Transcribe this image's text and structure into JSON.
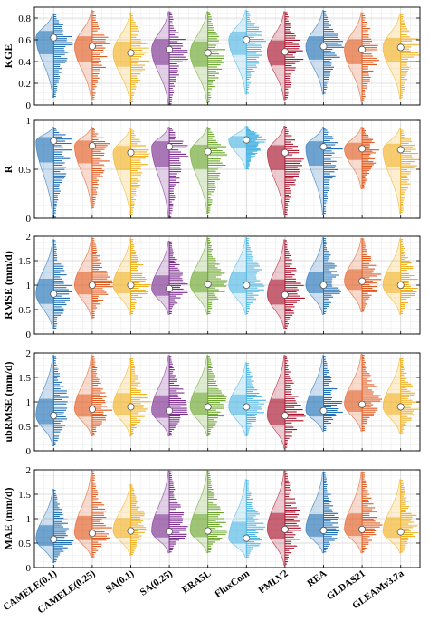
{
  "chart_data": {
    "type": "violin",
    "categories": [
      "CAMELE(0.1)",
      "CAMELE(0.25)",
      "SA(0.1)",
      "SA(0.25)",
      "ERA5L",
      "FluxCom",
      "PMLV2",
      "REA",
      "GLDAS21",
      "GLEAMv3.7a"
    ],
    "colors": [
      "#1f6fb5",
      "#e05a1f",
      "#f0b020",
      "#7b2d8e",
      "#6aa52a",
      "#4fb6e3",
      "#a8102a",
      "#1f6fb5",
      "#e05a1f",
      "#f0b020"
    ],
    "grid": true,
    "panels": [
      {
        "ylabel": "KGE",
        "ylim": [
          0,
          0.9
        ],
        "yticks": [
          0,
          0.2,
          0.4,
          0.6,
          0.8
        ],
        "ytick_labels": [
          "0",
          "0.2",
          "0.4",
          "0.6",
          "0.8"
        ],
        "medians": [
          0.62,
          0.54,
          0.48,
          0.51,
          0.48,
          0.6,
          0.49,
          0.54,
          0.51,
          0.53
        ],
        "ranges": [
          [
            0.07,
            0.84
          ],
          [
            0.04,
            0.87
          ],
          [
            0.02,
            0.85
          ],
          [
            0.0,
            0.86
          ],
          [
            0.02,
            0.86
          ],
          [
            0.1,
            0.87
          ],
          [
            0.04,
            0.86
          ],
          [
            0.1,
            0.87
          ],
          [
            0.03,
            0.85
          ],
          [
            0.06,
            0.84
          ]
        ]
      },
      {
        "ylabel": "R",
        "ylim": [
          0,
          1
        ],
        "yticks": [
          0,
          0.5,
          1
        ],
        "ytick_labels": [
          "0",
          "0.5",
          "1"
        ],
        "medians": [
          0.79,
          0.74,
          0.67,
          0.73,
          0.68,
          0.8,
          0.67,
          0.73,
          0.71,
          0.7
        ],
        "ranges": [
          [
            0.0,
            0.93
          ],
          [
            0.1,
            0.93
          ],
          [
            0.03,
            0.92
          ],
          [
            0.0,
            0.93
          ],
          [
            0.05,
            0.93
          ],
          [
            0.5,
            0.94
          ],
          [
            0.03,
            0.94
          ],
          [
            0.04,
            0.93
          ],
          [
            0.3,
            0.93
          ],
          [
            0.05,
            0.92
          ]
        ]
      },
      {
        "ylabel": "RMSE (mm/d)",
        "ylim": [
          0,
          2
        ],
        "yticks": [
          0,
          0.5,
          1,
          1.5,
          2
        ],
        "ytick_labels": [
          "0",
          "0.5",
          "1",
          "1.5",
          "2"
        ],
        "medians": [
          0.82,
          1.0,
          1.0,
          0.93,
          1.02,
          1.0,
          0.8,
          1.0,
          1.08,
          1.0
        ],
        "ranges": [
          [
            0.1,
            1.93
          ],
          [
            0.32,
            1.97
          ],
          [
            0.4,
            1.95
          ],
          [
            0.4,
            1.9
          ],
          [
            0.4,
            1.97
          ],
          [
            0.4,
            1.97
          ],
          [
            0.1,
            1.93
          ],
          [
            0.4,
            1.97
          ],
          [
            0.45,
            1.96
          ],
          [
            0.4,
            1.95
          ]
        ]
      },
      {
        "ylabel": "ubRMSE (mm/d)",
        "ylim": [
          0,
          2
        ],
        "yticks": [
          0,
          0.5,
          1,
          1.5,
          2
        ],
        "ytick_labels": [
          "0",
          "0.5",
          "1",
          "1.5",
          "2"
        ],
        "medians": [
          0.72,
          0.85,
          0.9,
          0.82,
          0.9,
          0.9,
          0.72,
          0.82,
          0.95,
          0.9
        ],
        "ranges": [
          [
            0.1,
            1.95
          ],
          [
            0.3,
            1.95
          ],
          [
            0.3,
            1.9
          ],
          [
            0.3,
            1.95
          ],
          [
            0.3,
            1.95
          ],
          [
            0.3,
            1.8
          ],
          [
            0.05,
            1.95
          ],
          [
            0.4,
            1.95
          ],
          [
            0.4,
            1.97
          ],
          [
            0.35,
            1.9
          ]
        ]
      },
      {
        "ylabel": "MAE (mm/d)",
        "ylim": [
          0,
          2
        ],
        "yticks": [
          0,
          0.5,
          1,
          1.5,
          2
        ],
        "ytick_labels": [
          "0",
          "0.5",
          "1",
          "1.5",
          "2"
        ],
        "medians": [
          0.58,
          0.7,
          0.75,
          0.74,
          0.75,
          0.6,
          0.78,
          0.76,
          0.78,
          0.73
        ],
        "ranges": [
          [
            0.1,
            1.6
          ],
          [
            0.2,
            1.98
          ],
          [
            0.25,
            1.7
          ],
          [
            0.3,
            1.98
          ],
          [
            0.3,
            1.98
          ],
          [
            0.2,
            1.8
          ],
          [
            0.05,
            1.98
          ],
          [
            0.3,
            1.95
          ],
          [
            0.3,
            1.95
          ],
          [
            0.3,
            1.8
          ]
        ]
      }
    ]
  }
}
